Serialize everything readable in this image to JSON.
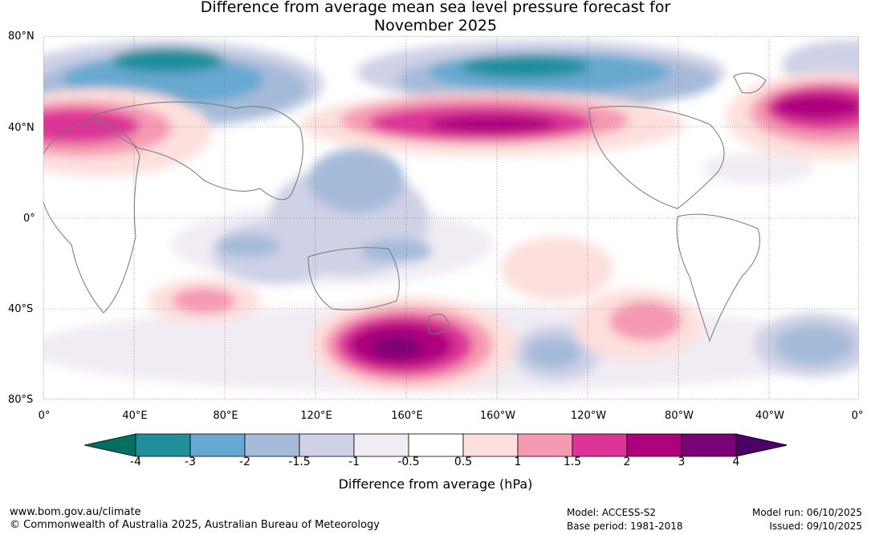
{
  "title": {
    "line1": "Difference from average mean sea level pressure forecast for",
    "line2": "November 2025"
  },
  "map": {
    "lat_labels": [
      "80°N",
      "40°N",
      "0°",
      "40°S",
      "80°S"
    ],
    "lon_labels": [
      "0°",
      "40°E",
      "80°E",
      "120°E",
      "160°E",
      "160°W",
      "120°W",
      "80°W",
      "40°W",
      "0°"
    ]
  },
  "colorbar": {
    "title": "Difference from average (hPa)",
    "tick_labels": [
      "-4",
      "-3",
      "-2",
      "-1.5",
      "-1",
      "-0.5",
      "0.5",
      "1",
      "1.5",
      "2",
      "3",
      "4"
    ],
    "colors": [
      "#007160",
      "#1f8f9c",
      "#67a8d1",
      "#a5bbd9",
      "#cfd1e6",
      "#f1ecf4",
      "#ffffff",
      "#fde0dd",
      "#f69ab4",
      "#dd3497",
      "#ae017e",
      "#7a0177",
      "#4d0066"
    ]
  },
  "footer": {
    "url": "www.bom.gov.au/climate",
    "copyright": "© Commonwealth of Australia 2025, Australian Bureau of Meteorology",
    "model": "Model: ACCESS-S2",
    "base_period": "Base period: 1981-2018",
    "model_run": "Model run: 06/10/2025",
    "issued": "Issued: 09/10/2025"
  }
}
